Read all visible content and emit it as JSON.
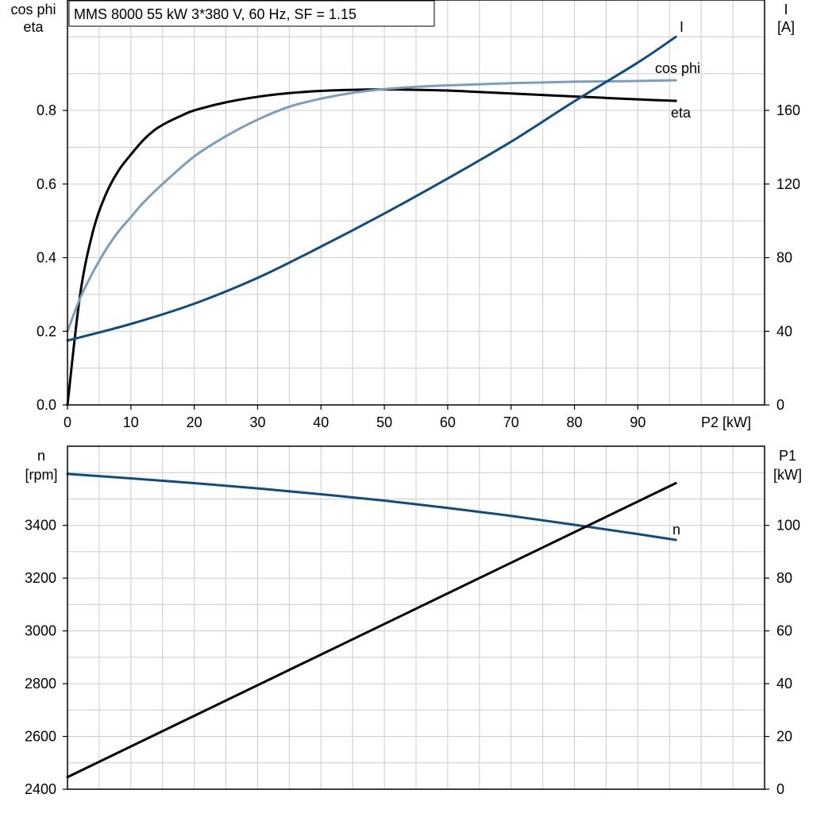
{
  "title": "MMS 8000   55 kW   3*380 V, 60 Hz, SF = 1.15",
  "colors": {
    "eta": "#000000",
    "cos_phi": "#7b9ebf",
    "current": "#0f4c81",
    "speed": "#0f4c81",
    "p1": "#000000",
    "grid": "#cccccc"
  },
  "chart_data": [
    {
      "type": "line",
      "xlabel": "P2 [kW]",
      "ylabel_left": [
        "cos phi",
        "eta"
      ],
      "ylabel_right": [
        "I",
        "[A]"
      ],
      "xlim": [
        0,
        110
      ],
      "ylim_left": [
        0,
        1.1
      ],
      "ylim_right": [
        0,
        220
      ],
      "x_ticks": [
        "0",
        "10",
        "20",
        "30",
        "40",
        "50",
        "60",
        "70",
        "80",
        "90"
      ],
      "y_ticks_left": [
        "0.0",
        "0.2",
        "0.4",
        "0.6",
        "0.8"
      ],
      "y_ticks_right": [
        "0",
        "40",
        "80",
        "120",
        "160"
      ],
      "grid": true,
      "series": [
        {
          "name": "eta",
          "axis": "left",
          "color": "#000000",
          "x": [
            0,
            2,
            4,
            6,
            8,
            10,
            12,
            14,
            16,
            18,
            20,
            25,
            30,
            35,
            40,
            45,
            50,
            55,
            60,
            65,
            70,
            75,
            80,
            85,
            90,
            96
          ],
          "y": [
            0.0,
            0.3,
            0.47,
            0.57,
            0.635,
            0.68,
            0.72,
            0.75,
            0.77,
            0.786,
            0.8,
            0.822,
            0.837,
            0.847,
            0.853,
            0.856,
            0.857,
            0.856,
            0.854,
            0.85,
            0.846,
            0.842,
            0.838,
            0.834,
            0.83,
            0.826
          ]
        },
        {
          "name": "cos phi",
          "axis": "left",
          "color": "#7b9ebf",
          "x": [
            0,
            2,
            4,
            6,
            8,
            10,
            12,
            15,
            20,
            25,
            30,
            35,
            40,
            45,
            50,
            55,
            60,
            65,
            70,
            75,
            80,
            85,
            90,
            96
          ],
          "y": [
            0.2,
            0.29,
            0.36,
            0.42,
            0.47,
            0.51,
            0.55,
            0.6,
            0.675,
            0.73,
            0.775,
            0.81,
            0.832,
            0.848,
            0.858,
            0.864,
            0.868,
            0.871,
            0.874,
            0.876,
            0.878,
            0.879,
            0.88,
            0.882
          ]
        },
        {
          "name": "I",
          "axis": "right",
          "color": "#0f4c81",
          "x": [
            0,
            10,
            20,
            30,
            40,
            50,
            60,
            70,
            80,
            90,
            96
          ],
          "y": [
            35,
            44,
            55,
            69,
            86,
            104,
            123,
            143,
            165,
            186,
            200
          ]
        }
      ]
    },
    {
      "type": "line",
      "xlabel": "",
      "ylabel_left": [
        "n",
        "[rpm]"
      ],
      "ylabel_right": [
        "P1",
        "[kW]"
      ],
      "xlim": [
        0,
        110
      ],
      "ylim_left": [
        2400,
        3700
      ],
      "ylim_right": [
        0,
        130
      ],
      "y_ticks_left": [
        "2400",
        "2600",
        "2800",
        "3000",
        "3200",
        "3400"
      ],
      "y_ticks_right": [
        "0",
        "20",
        "40",
        "60",
        "80",
        "100"
      ],
      "grid": true,
      "series": [
        {
          "name": "n",
          "axis": "left",
          "color": "#0f4c81",
          "x": [
            0,
            10,
            20,
            30,
            40,
            50,
            60,
            70,
            80,
            90,
            96
          ],
          "y": [
            3595,
            3578,
            3560,
            3540,
            3518,
            3494,
            3466,
            3436,
            3402,
            3367,
            3345
          ]
        },
        {
          "name": "P1",
          "axis": "right",
          "color": "#000000",
          "x": [
            0,
            96
          ],
          "y": [
            4.6,
            116
          ]
        }
      ]
    }
  ]
}
